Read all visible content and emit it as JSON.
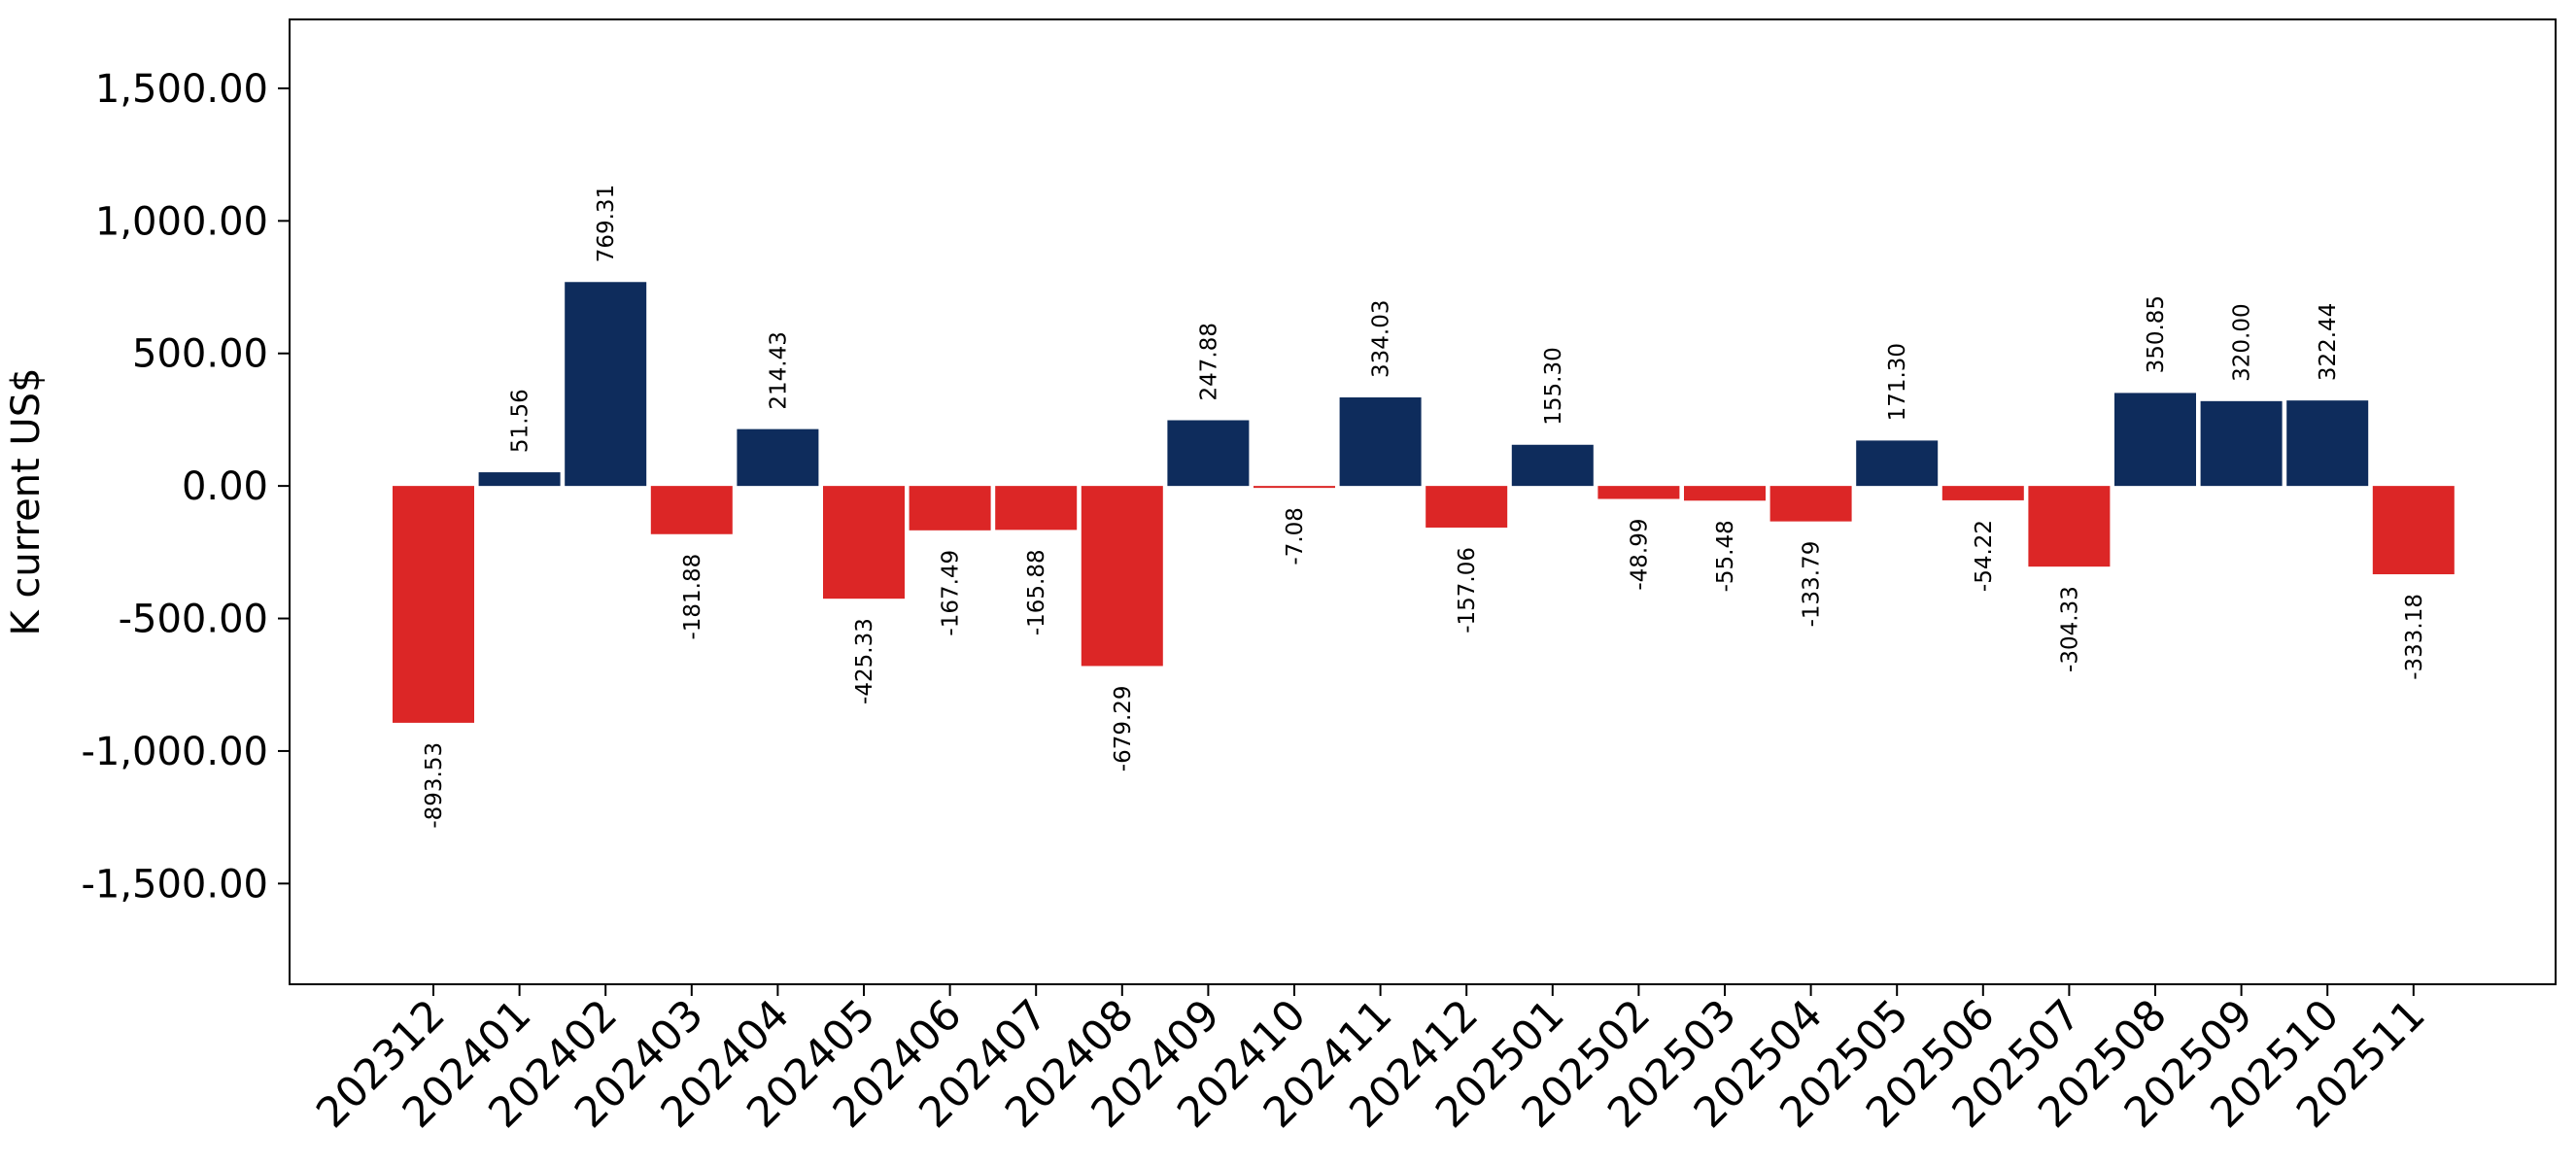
{
  "chart_data": {
    "type": "bar",
    "title": "",
    "xlabel": "",
    "ylabel": "K current US$",
    "ylim": [
      -1880,
      1760
    ],
    "yticks": [
      -1500,
      -1000,
      -500,
      0,
      500,
      1000,
      1500
    ],
    "ytick_labels": [
      "-1,500.00",
      "-1,000.00",
      "-500.00",
      "0.00",
      "500.00",
      "1,000.00",
      "1,500.00"
    ],
    "grid": false,
    "legend": "none",
    "colors": {
      "positive": "#0e2c5c",
      "negative": "#dc2626"
    },
    "categories": [
      "202312",
      "202401",
      "202402",
      "202403",
      "202404",
      "202405",
      "202406",
      "202407",
      "202408",
      "202409",
      "202410",
      "202411",
      "202412",
      "202501",
      "202502",
      "202503",
      "202504",
      "202505",
      "202506",
      "202507",
      "202508",
      "202509",
      "202510",
      "202511"
    ],
    "values": [
      -893.53,
      51.56,
      769.31,
      -181.88,
      214.43,
      -425.33,
      -167.49,
      -165.88,
      -679.29,
      247.88,
      -7.08,
      334.03,
      -157.06,
      155.3,
      -48.99,
      -55.48,
      -133.79,
      171.3,
      -54.22,
      -304.33,
      350.85,
      320.0,
      322.44,
      -333.18
    ],
    "value_labels": [
      "-893.53",
      "51.56",
      "769.31",
      "-181.88",
      "214.43",
      "-425.33",
      "-167.49",
      "-165.88",
      "-679.29",
      "247.88",
      "-7.08",
      "334.03",
      "-157.06",
      "155.30",
      "-48.99",
      "-55.48",
      "-133.79",
      "171.30",
      "-54.22",
      "-304.33",
      "350.85",
      "320.00",
      "322.44",
      "-333.18"
    ]
  }
}
